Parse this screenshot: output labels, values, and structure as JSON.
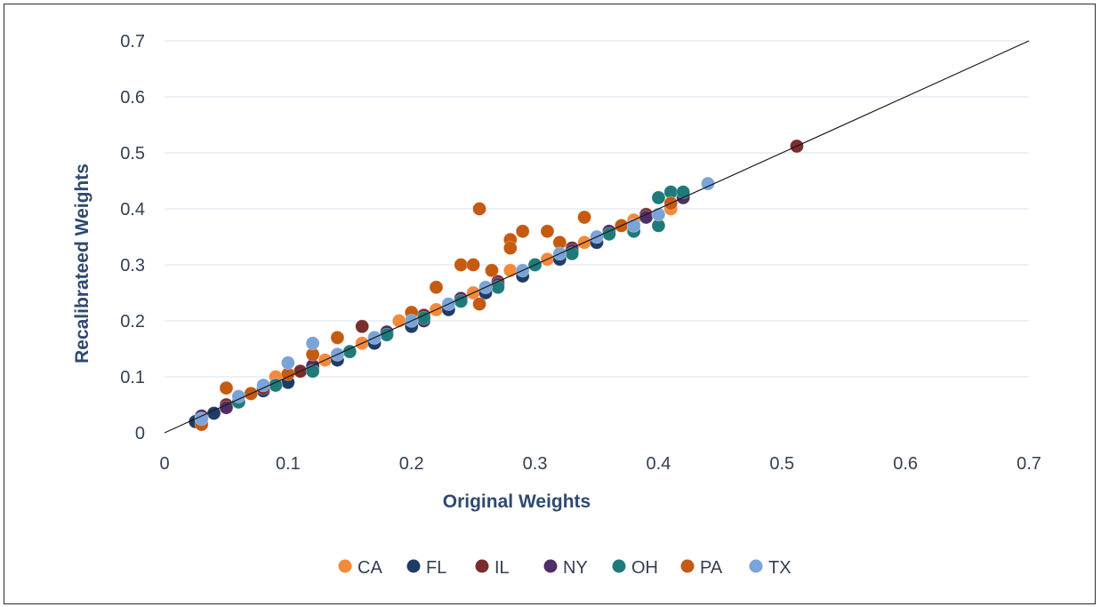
{
  "chart_data": {
    "type": "scatter",
    "title": "",
    "xlabel": "Original Weights",
    "ylabel": "Recalibrateed Weights",
    "xlim": [
      0,
      0.7
    ],
    "ylim": [
      0,
      0.7
    ],
    "xticks": [
      "0",
      "0.1",
      "0.2",
      "0.3",
      "0.4",
      "0.5",
      "0.6",
      "0.7"
    ],
    "yticks": [
      "0",
      "0.1",
      "0.2",
      "0.3",
      "0.4",
      "0.5",
      "0.6",
      "0.7"
    ],
    "grid": "horizontal",
    "legend_position": "bottom",
    "reference_line": {
      "x": [
        0,
        0.7
      ],
      "y": [
        0,
        0.7
      ]
    },
    "series": [
      {
        "name": "CA",
        "color": "#f4893a",
        "points": [
          [
            0.03,
            0.02
          ],
          [
            0.05,
            0.05
          ],
          [
            0.07,
            0.07
          ],
          [
            0.09,
            0.1
          ],
          [
            0.11,
            0.11
          ],
          [
            0.13,
            0.13
          ],
          [
            0.16,
            0.16
          ],
          [
            0.19,
            0.2
          ],
          [
            0.22,
            0.22
          ],
          [
            0.25,
            0.25
          ],
          [
            0.28,
            0.29
          ],
          [
            0.31,
            0.31
          ],
          [
            0.34,
            0.34
          ],
          [
            0.38,
            0.38
          ],
          [
            0.41,
            0.4
          ]
        ]
      },
      {
        "name": "FL",
        "color": "#1f3b66",
        "points": [
          [
            0.025,
            0.02
          ],
          [
            0.04,
            0.035
          ],
          [
            0.06,
            0.055
          ],
          [
            0.08,
            0.075
          ],
          [
            0.1,
            0.09
          ],
          [
            0.12,
            0.115
          ],
          [
            0.14,
            0.13
          ],
          [
            0.17,
            0.16
          ],
          [
            0.2,
            0.19
          ],
          [
            0.23,
            0.22
          ],
          [
            0.26,
            0.25
          ],
          [
            0.29,
            0.28
          ],
          [
            0.32,
            0.31
          ],
          [
            0.35,
            0.34
          ],
          [
            0.38,
            0.37
          ]
        ]
      },
      {
        "name": "IL",
        "color": "#7b2c2c",
        "points": [
          [
            0.03,
            0.025
          ],
          [
            0.05,
            0.05
          ],
          [
            0.08,
            0.08
          ],
          [
            0.11,
            0.11
          ],
          [
            0.14,
            0.14
          ],
          [
            0.16,
            0.19
          ],
          [
            0.18,
            0.18
          ],
          [
            0.21,
            0.21
          ],
          [
            0.24,
            0.24
          ],
          [
            0.27,
            0.27
          ],
          [
            0.3,
            0.3
          ],
          [
            0.33,
            0.33
          ],
          [
            0.36,
            0.36
          ],
          [
            0.39,
            0.39
          ],
          [
            0.42,
            0.42
          ],
          [
            0.512,
            0.512
          ]
        ]
      },
      {
        "name": "NY",
        "color": "#4e2e66",
        "points": [
          [
            0.03,
            0.03
          ],
          [
            0.05,
            0.045
          ],
          [
            0.07,
            0.07
          ],
          [
            0.09,
            0.085
          ],
          [
            0.12,
            0.12
          ],
          [
            0.15,
            0.145
          ],
          [
            0.18,
            0.18
          ],
          [
            0.21,
            0.2
          ],
          [
            0.24,
            0.24
          ],
          [
            0.27,
            0.265
          ],
          [
            0.3,
            0.3
          ],
          [
            0.33,
            0.325
          ],
          [
            0.36,
            0.36
          ],
          [
            0.39,
            0.385
          ],
          [
            0.42,
            0.42
          ]
        ]
      },
      {
        "name": "OH",
        "color": "#1f7a7a",
        "points": [
          [
            0.03,
            0.025
          ],
          [
            0.06,
            0.055
          ],
          [
            0.09,
            0.085
          ],
          [
            0.12,
            0.11
          ],
          [
            0.15,
            0.145
          ],
          [
            0.18,
            0.175
          ],
          [
            0.21,
            0.205
          ],
          [
            0.24,
            0.235
          ],
          [
            0.27,
            0.26
          ],
          [
            0.3,
            0.3
          ],
          [
            0.33,
            0.32
          ],
          [
            0.36,
            0.355
          ],
          [
            0.38,
            0.36
          ],
          [
            0.4,
            0.37
          ],
          [
            0.41,
            0.43
          ],
          [
            0.42,
            0.43
          ],
          [
            0.4,
            0.42
          ]
        ]
      },
      {
        "name": "PA",
        "color": "#c55a11",
        "points": [
          [
            0.03,
            0.015
          ],
          [
            0.05,
            0.08
          ],
          [
            0.07,
            0.07
          ],
          [
            0.1,
            0.105
          ],
          [
            0.12,
            0.14
          ],
          [
            0.14,
            0.17
          ],
          [
            0.17,
            0.17
          ],
          [
            0.2,
            0.215
          ],
          [
            0.22,
            0.26
          ],
          [
            0.24,
            0.3
          ],
          [
            0.25,
            0.3
          ],
          [
            0.255,
            0.4
          ],
          [
            0.265,
            0.29
          ],
          [
            0.28,
            0.345
          ],
          [
            0.28,
            0.33
          ],
          [
            0.29,
            0.36
          ],
          [
            0.31,
            0.36
          ],
          [
            0.32,
            0.34
          ],
          [
            0.34,
            0.385
          ],
          [
            0.37,
            0.37
          ],
          [
            0.41,
            0.41
          ],
          [
            0.255,
            0.23
          ]
        ]
      },
      {
        "name": "TX",
        "color": "#7aa3d8",
        "points": [
          [
            0.03,
            0.025
          ],
          [
            0.06,
            0.065
          ],
          [
            0.08,
            0.085
          ],
          [
            0.1,
            0.125
          ],
          [
            0.12,
            0.16
          ],
          [
            0.14,
            0.14
          ],
          [
            0.17,
            0.17
          ],
          [
            0.2,
            0.2
          ],
          [
            0.23,
            0.23
          ],
          [
            0.26,
            0.26
          ],
          [
            0.29,
            0.29
          ],
          [
            0.32,
            0.32
          ],
          [
            0.35,
            0.35
          ],
          [
            0.38,
            0.37
          ],
          [
            0.4,
            0.39
          ],
          [
            0.44,
            0.445
          ]
        ]
      }
    ]
  }
}
